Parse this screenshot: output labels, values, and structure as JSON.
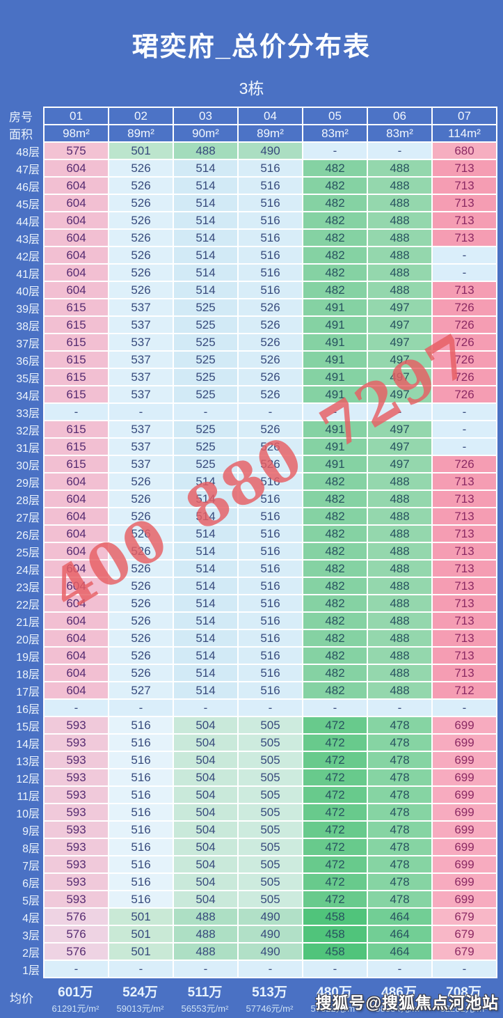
{
  "page": {
    "bg_color": "#4a71c4"
  },
  "watermarks": {
    "phone": "400 880 7297",
    "sohu": "搜狐号@搜狐焦点河池站"
  },
  "palette": {
    "page_bg": "#4a71c4",
    "grid_line": "#ffffff",
    "header_cell_bg": "#4c73c6",
    "header_text": "#f2f7fd",
    "dash_cell": "#daeefa",
    "dash_text": "#374a7c",
    "text_colors": [
      "#562b71",
      "#374a7c",
      "#374a7c",
      "#374a7c",
      "#27525f",
      "#27525f",
      "#8c2a64"
    ],
    "groups": {
      "top": [
        "#f3c2d3",
        "#bce5cd",
        "#a3dcbc",
        "#abdec2",
        "#daeefa",
        "#daeefa",
        "#f6aec0"
      ],
      "high": [
        "#f2bfd2",
        "#def0fa",
        "#d2eaf6",
        "#d8edf8",
        "#85d2a3",
        "#94d7ad",
        "#f59db3"
      ],
      "low": [
        "#f0c9da",
        "#e5f3fb",
        "#c9e9da",
        "#cdebde",
        "#68ca8c",
        "#86d4a3",
        "#f7abbf"
      ],
      "base": [
        "#eed3e3",
        "#c9e9d6",
        "#addfc4",
        "#b1e0c7",
        "#50c47b",
        "#72ce95",
        "#f8b7c7"
      ],
      "dash": [
        "#daeefa",
        "#daeefa",
        "#daeefa",
        "#daeefa",
        "#daeefa",
        "#daeefa",
        "#daeefa"
      ]
    }
  },
  "chart_data": {
    "type": "table",
    "title": "珺奕府_总价分布表",
    "building": "3栋",
    "columns": {
      "room_label": "房号",
      "area_label": "面积",
      "room_numbers": [
        "01",
        "02",
        "03",
        "04",
        "05",
        "06",
        "07"
      ],
      "areas": [
        "98m²",
        "89m²",
        "90m²",
        "89m²",
        "83m²",
        "83m²",
        "114m²"
      ]
    },
    "rows": [
      {
        "floor": "48层",
        "group": "top",
        "values": [
          "575",
          "501",
          "488",
          "490",
          "-",
          "-",
          "680"
        ]
      },
      {
        "floor": "47层",
        "group": "high",
        "values": [
          "604",
          "526",
          "514",
          "516",
          "482",
          "488",
          "713"
        ]
      },
      {
        "floor": "46层",
        "group": "high",
        "values": [
          "604",
          "526",
          "514",
          "516",
          "482",
          "488",
          "713"
        ]
      },
      {
        "floor": "45层",
        "group": "high",
        "values": [
          "604",
          "526",
          "514",
          "516",
          "482",
          "488",
          "713"
        ]
      },
      {
        "floor": "44层",
        "group": "high",
        "values": [
          "604",
          "526",
          "514",
          "516",
          "482",
          "488",
          "713"
        ]
      },
      {
        "floor": "43层",
        "group": "high",
        "values": [
          "604",
          "526",
          "514",
          "516",
          "482",
          "488",
          "713"
        ]
      },
      {
        "floor": "42层",
        "group": "high",
        "values": [
          "604",
          "526",
          "514",
          "516",
          "482",
          "488",
          "-"
        ]
      },
      {
        "floor": "41层",
        "group": "high",
        "values": [
          "604",
          "526",
          "514",
          "516",
          "482",
          "488",
          "-"
        ]
      },
      {
        "floor": "40层",
        "group": "high",
        "values": [
          "604",
          "526",
          "514",
          "516",
          "482",
          "488",
          "713"
        ]
      },
      {
        "floor": "39层",
        "group": "high",
        "values": [
          "615",
          "537",
          "525",
          "526",
          "491",
          "497",
          "726"
        ]
      },
      {
        "floor": "38层",
        "group": "high",
        "values": [
          "615",
          "537",
          "525",
          "526",
          "491",
          "497",
          "726"
        ]
      },
      {
        "floor": "37层",
        "group": "high",
        "values": [
          "615",
          "537",
          "525",
          "526",
          "491",
          "497",
          "726"
        ]
      },
      {
        "floor": "36层",
        "group": "high",
        "values": [
          "615",
          "537",
          "525",
          "526",
          "491",
          "497",
          "726"
        ]
      },
      {
        "floor": "35层",
        "group": "high",
        "values": [
          "615",
          "537",
          "525",
          "526",
          "491",
          "497",
          "726"
        ]
      },
      {
        "floor": "34层",
        "group": "high",
        "values": [
          "615",
          "537",
          "525",
          "526",
          "491",
          "497",
          "726"
        ]
      },
      {
        "floor": "33层",
        "group": "dash",
        "values": [
          "-",
          "-",
          "-",
          "-",
          "-",
          "-",
          "-"
        ]
      },
      {
        "floor": "32层",
        "group": "high",
        "values": [
          "615",
          "537",
          "525",
          "526",
          "491",
          "497",
          "-"
        ]
      },
      {
        "floor": "31层",
        "group": "high",
        "values": [
          "615",
          "537",
          "525",
          "526",
          "491",
          "497",
          "-"
        ]
      },
      {
        "floor": "30层",
        "group": "high",
        "values": [
          "615",
          "537",
          "525",
          "526",
          "491",
          "497",
          "726"
        ]
      },
      {
        "floor": "29层",
        "group": "high",
        "values": [
          "604",
          "526",
          "514",
          "516",
          "482",
          "488",
          "713"
        ]
      },
      {
        "floor": "28层",
        "group": "high",
        "values": [
          "604",
          "526",
          "514",
          "516",
          "482",
          "488",
          "713"
        ]
      },
      {
        "floor": "27层",
        "group": "high",
        "values": [
          "604",
          "526",
          "514",
          "516",
          "482",
          "488",
          "713"
        ]
      },
      {
        "floor": "26层",
        "group": "high",
        "values": [
          "604",
          "526",
          "514",
          "516",
          "482",
          "488",
          "713"
        ]
      },
      {
        "floor": "25层",
        "group": "high",
        "values": [
          "604",
          "526",
          "514",
          "516",
          "482",
          "488",
          "713"
        ]
      },
      {
        "floor": "24层",
        "group": "high",
        "values": [
          "604",
          "526",
          "514",
          "516",
          "482",
          "488",
          "713"
        ]
      },
      {
        "floor": "23层",
        "group": "high",
        "values": [
          "604",
          "526",
          "514",
          "516",
          "482",
          "488",
          "713"
        ]
      },
      {
        "floor": "22层",
        "group": "high",
        "values": [
          "604",
          "526",
          "514",
          "516",
          "482",
          "488",
          "713"
        ]
      },
      {
        "floor": "21层",
        "group": "high",
        "values": [
          "604",
          "526",
          "514",
          "516",
          "482",
          "488",
          "713"
        ]
      },
      {
        "floor": "20层",
        "group": "high",
        "values": [
          "604",
          "526",
          "514",
          "516",
          "482",
          "488",
          "713"
        ]
      },
      {
        "floor": "19层",
        "group": "high",
        "values": [
          "604",
          "526",
          "514",
          "516",
          "482",
          "488",
          "713"
        ]
      },
      {
        "floor": "18层",
        "group": "high",
        "values": [
          "604",
          "526",
          "514",
          "516",
          "482",
          "488",
          "713"
        ]
      },
      {
        "floor": "17层",
        "group": "high",
        "values": [
          "604",
          "527",
          "514",
          "516",
          "482",
          "488",
          "712"
        ]
      },
      {
        "floor": "16层",
        "group": "dash",
        "values": [
          "-",
          "-",
          "-",
          "-",
          "-",
          "-",
          "-"
        ]
      },
      {
        "floor": "15层",
        "group": "low",
        "values": [
          "593",
          "516",
          "504",
          "505",
          "472",
          "478",
          "699"
        ]
      },
      {
        "floor": "14层",
        "group": "low",
        "values": [
          "593",
          "516",
          "504",
          "505",
          "472",
          "478",
          "699"
        ]
      },
      {
        "floor": "13层",
        "group": "low",
        "values": [
          "593",
          "516",
          "504",
          "505",
          "472",
          "478",
          "699"
        ]
      },
      {
        "floor": "12层",
        "group": "low",
        "values": [
          "593",
          "516",
          "504",
          "505",
          "472",
          "478",
          "699"
        ]
      },
      {
        "floor": "11层",
        "group": "low",
        "values": [
          "593",
          "516",
          "504",
          "505",
          "472",
          "478",
          "699"
        ]
      },
      {
        "floor": "10层",
        "group": "low",
        "values": [
          "593",
          "516",
          "504",
          "505",
          "472",
          "478",
          "699"
        ]
      },
      {
        "floor": "9层",
        "group": "low",
        "values": [
          "593",
          "516",
          "504",
          "505",
          "472",
          "478",
          "699"
        ]
      },
      {
        "floor": "8层",
        "group": "low",
        "values": [
          "593",
          "516",
          "504",
          "505",
          "472",
          "478",
          "699"
        ]
      },
      {
        "floor": "7层",
        "group": "low",
        "values": [
          "593",
          "516",
          "504",
          "505",
          "472",
          "478",
          "699"
        ]
      },
      {
        "floor": "6层",
        "group": "low",
        "values": [
          "593",
          "516",
          "504",
          "505",
          "472",
          "478",
          "699"
        ]
      },
      {
        "floor": "5层",
        "group": "low",
        "values": [
          "593",
          "516",
          "504",
          "505",
          "472",
          "478",
          "699"
        ]
      },
      {
        "floor": "4层",
        "group": "base",
        "values": [
          "576",
          "501",
          "488",
          "490",
          "458",
          "464",
          "679"
        ]
      },
      {
        "floor": "3层",
        "group": "base",
        "values": [
          "576",
          "501",
          "488",
          "490",
          "458",
          "464",
          "679"
        ]
      },
      {
        "floor": "2层",
        "group": "base",
        "values": [
          "576",
          "501",
          "488",
          "490",
          "458",
          "464",
          "679"
        ]
      },
      {
        "floor": "1层",
        "group": "dash",
        "values": [
          "-",
          "-",
          "-",
          "-",
          "-",
          "-",
          "-"
        ]
      }
    ],
    "average": {
      "label": "均价",
      "totals": [
        "601万",
        "524万",
        "511万",
        "513万",
        "480万",
        "486万",
        "708万"
      ],
      "unit_prices": [
        "61291元/m²",
        "59013元/m²",
        "56553元/m²",
        "57746元/m²",
        "57622元/m²",
        "58554元/m²",
        "62281元/m²"
      ]
    }
  }
}
